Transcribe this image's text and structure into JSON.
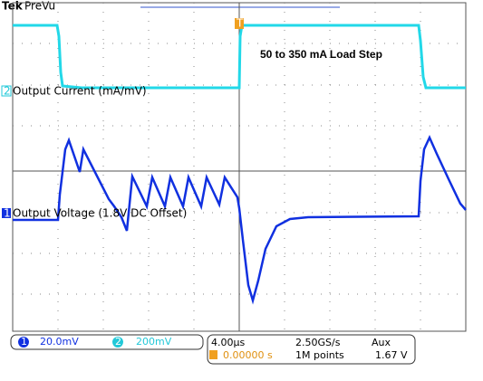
{
  "header": {
    "brand": "Tek",
    "mode": "PreVu"
  },
  "annotations": {
    "title": "50 to 350 mA Load Step",
    "ch2_label": "Output Current (mA/mV)",
    "ch1_label": "Output Voltage (1.8V DC Offset)"
  },
  "channels": [
    {
      "number": "1",
      "scale": "20.0mV"
    },
    {
      "number": "2",
      "scale": "200mV"
    }
  ],
  "trigger_marker": "T",
  "timebase": {
    "scale": "4.00µs",
    "sample_rate": "2.50GS/s",
    "trigger_source": "Aux",
    "position": "0.00000 s",
    "record_length": "1M points",
    "trigger_level": "1.67 V"
  }
}
